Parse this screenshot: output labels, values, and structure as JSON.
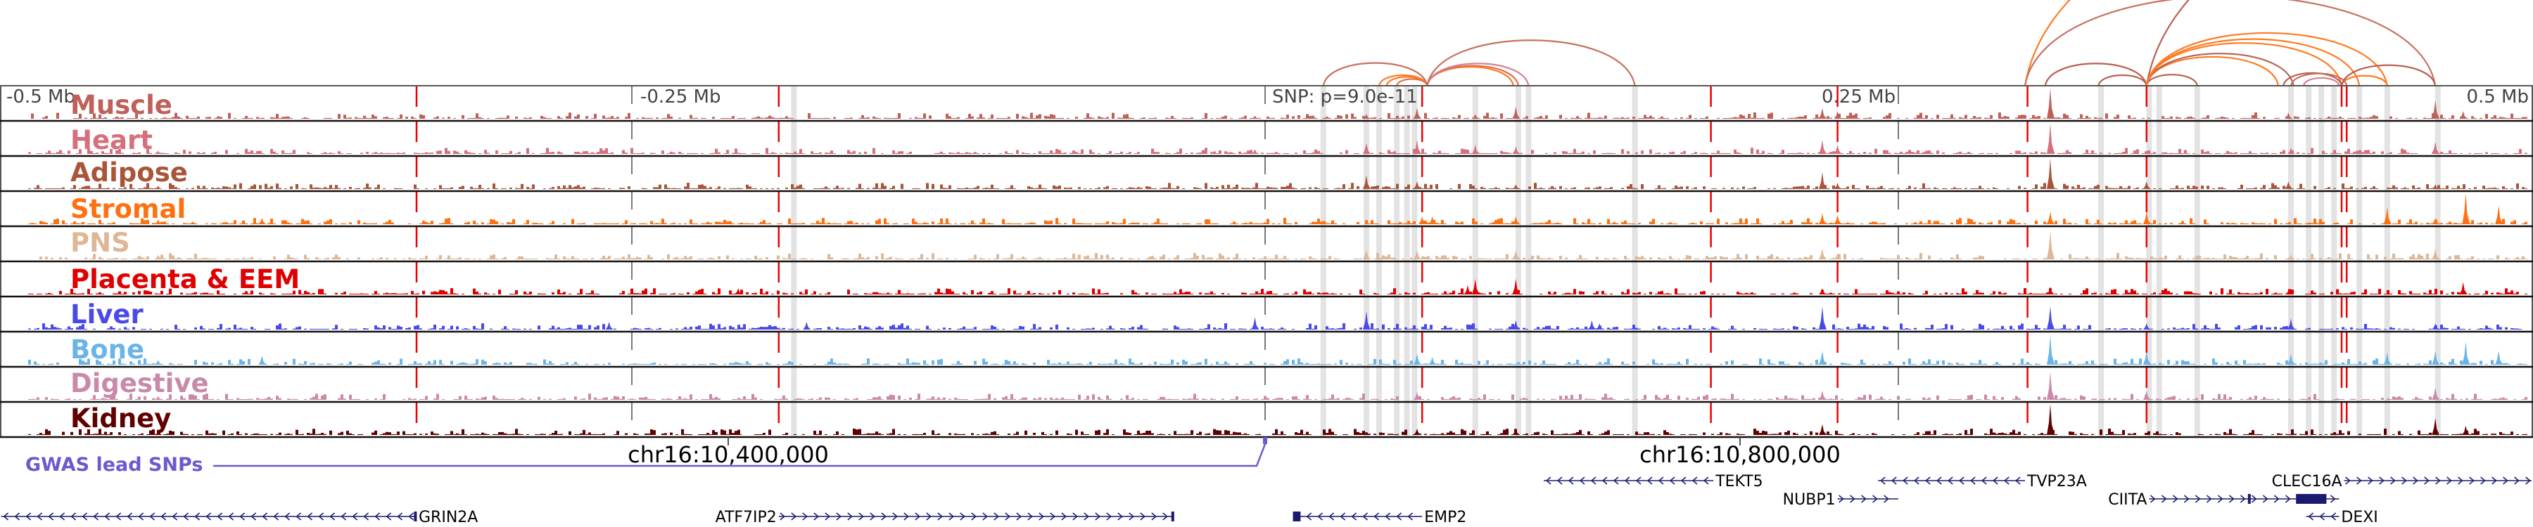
{
  "axis": {
    "left_label": "-0.5 Mb",
    "minus_quarter_label": "-0.25 Mb",
    "snp_label": "SNP: p=9.0e-11",
    "plus_quarter_label": "0.25 Mb",
    "right_label": "0.5 Mb",
    "coord_left": "chr16:10,400,000",
    "coord_right": "chr16:10,800,000"
  },
  "gwas": {
    "label": "GWAS lead SNPs",
    "color": "#6a5acd"
  },
  "tracks": [
    {
      "label": "Muscle",
      "color": "#c0605a",
      "peaks": [
        [
          310,
          1.0
        ],
        [
          220,
          0.35
        ],
        [
          226,
          0.25
        ],
        [
          462,
          0.6
        ],
        [
          60,
          0.35
        ],
        [
          83,
          0.15
        ],
        [
          99,
          0.4
        ],
        [
          473,
          0.25
        ],
        [
          404,
          0.2
        ],
        [
          -4,
          0.1
        ],
        [
          40,
          0.15
        ]
      ]
    },
    {
      "label": "Heart",
      "color": "#d4707e",
      "peaks": [
        [
          310,
          1.0
        ],
        [
          220,
          0.45
        ],
        [
          226,
          0.3
        ],
        [
          60,
          0.45
        ],
        [
          40,
          0.35
        ],
        [
          83,
          0.3
        ],
        [
          462,
          0.4
        ],
        [
          99,
          0.25
        ],
        [
          405,
          0.2
        ],
        [
          -4,
          0.15
        ],
        [
          -437,
          0.1
        ]
      ]
    },
    {
      "label": "Adipose",
      "color": "#a8553a",
      "peaks": [
        [
          310,
          1.0
        ],
        [
          220,
          0.55
        ],
        [
          226,
          0.2
        ],
        [
          40,
          0.45
        ],
        [
          60,
          0.25
        ],
        [
          462,
          0.15
        ],
        [
          348,
          0.25
        ],
        [
          404,
          0.25
        ],
        [
          99,
          0.15
        ],
        [
          -437,
          0.1
        ]
      ]
    },
    {
      "label": "Stromal",
      "color": "#ff7010",
      "peaks": [
        [
          474,
          1.0
        ],
        [
          443,
          0.55
        ],
        [
          487,
          0.6
        ],
        [
          348,
          0.4
        ],
        [
          310,
          0.4
        ],
        [
          220,
          0.35
        ],
        [
          226,
          0.3
        ],
        [
          62,
          0.25
        ],
        [
          66,
          0.25
        ],
        [
          99,
          0.25
        ],
        [
          -396,
          0.2
        ],
        [
          -437,
          0.15
        ],
        [
          462,
          0.2
        ]
      ]
    },
    {
      "label": "PNS",
      "color": "#deb896",
      "peaks": [
        [
          310,
          0.95
        ],
        [
          220,
          0.35
        ],
        [
          226,
          0.2
        ],
        [
          462,
          0.35
        ],
        [
          60,
          0.3
        ],
        [
          40,
          0.3
        ],
        [
          99,
          0.3
        ],
        [
          405,
          0.15
        ],
        [
          -437,
          0.15
        ]
      ]
    },
    {
      "label": "Placenta & EEM",
      "color": "#e00000",
      "peaks": [
        [
          83,
          0.5
        ],
        [
          80,
          0.3
        ],
        [
          99,
          0.5
        ],
        [
          473,
          0.4
        ],
        [
          220,
          0.2
        ],
        [
          310,
          0.25
        ],
        [
          -208,
          0.2
        ],
        [
          404,
          0.12
        ]
      ]
    },
    {
      "label": "Liver",
      "color": "#4a4ae6",
      "peaks": [
        [
          220,
          0.75
        ],
        [
          310,
          0.75
        ],
        [
          40,
          0.6
        ],
        [
          -4,
          0.4
        ],
        [
          129,
          0.3
        ],
        [
          132,
          0.2
        ],
        [
          405,
          0.35
        ],
        [
          99,
          0.3
        ],
        [
          -259,
          0.25
        ],
        [
          -181,
          0.25
        ],
        [
          462,
          0.2
        ],
        [
          348,
          0.2
        ]
      ]
    },
    {
      "label": "Bone",
      "color": "#6ab4e8",
      "peaks": [
        [
          310,
          0.95
        ],
        [
          220,
          0.45
        ],
        [
          348,
          0.45
        ],
        [
          462,
          0.45
        ],
        [
          474,
          0.75
        ],
        [
          443,
          0.4
        ],
        [
          405,
          0.35
        ],
        [
          60,
          0.35
        ],
        [
          66,
          0.25
        ],
        [
          487,
          0.45
        ],
        [
          -396,
          0.3
        ],
        [
          -437,
          0.15
        ]
      ]
    },
    {
      "label": "Digestive",
      "color": "#c88aa8",
      "peaks": [
        [
          310,
          0.9
        ],
        [
          220,
          0.3
        ],
        [
          462,
          0.4
        ],
        [
          348,
          0.3
        ],
        [
          60,
          0.25
        ],
        [
          -437,
          0.12
        ]
      ]
    },
    {
      "label": "Kidney",
      "color": "#600000",
      "peaks": [
        [
          310,
          1.0
        ],
        [
          462,
          0.55
        ],
        [
          220,
          0.35
        ],
        [
          474,
          0.3
        ],
        [
          99,
          0.2
        ],
        [
          60,
          0.2
        ],
        [
          -437,
          0.12
        ],
        [
          -208,
          0.1
        ]
      ]
    }
  ],
  "red_lines_kb": [
    -335,
    -192,
    62,
    176,
    226,
    301,
    348,
    425,
    427
  ],
  "highlight_bands_kb": [
    -186,
    23,
    40,
    45,
    52,
    56,
    59,
    83,
    100,
    104,
    146,
    330,
    349,
    353,
    368,
    405,
    412,
    417,
    422,
    432,
    443,
    463
  ],
  "arcs": [
    {
      "from": 23,
      "to": 64,
      "color": "#c87060"
    },
    {
      "from": 45,
      "to": 64,
      "color": "#ff7a20"
    },
    {
      "from": 48,
      "to": 64,
      "color": "#ff7a20"
    },
    {
      "from": 52,
      "to": 64,
      "color": "#e07050"
    },
    {
      "from": 64,
      "to": 98,
      "color": "#ff7a20"
    },
    {
      "from": 64,
      "to": 100,
      "color": "#e07050"
    },
    {
      "from": 64,
      "to": 104,
      "color": "#d88090"
    },
    {
      "from": 64,
      "to": 146,
      "color": "#c87060"
    },
    {
      "from": 300,
      "to": 700,
      "color": "#ff7a20"
    },
    {
      "from": 300,
      "to": 462,
      "color": "#c87060"
    },
    {
      "from": 348,
      "to": 780,
      "color": "#b86050"
    },
    {
      "from": 308,
      "to": 348,
      "color": "#b86050"
    },
    {
      "from": 329,
      "to": 348,
      "color": "#b86050"
    },
    {
      "from": 348,
      "to": 368,
      "color": "#b86050"
    },
    {
      "from": 348,
      "to": 400,
      "color": "#ff7a20"
    },
    {
      "from": 348,
      "to": 406,
      "color": "#b86050"
    },
    {
      "from": 348,
      "to": 425,
      "color": "#ff7a20"
    },
    {
      "from": 348,
      "to": 432,
      "color": "#ff7a20"
    },
    {
      "from": 348,
      "to": 443,
      "color": "#ff7a20"
    },
    {
      "from": 402,
      "to": 425,
      "color": "#b86050"
    },
    {
      "from": 405,
      "to": 427,
      "color": "#c87060"
    },
    {
      "from": 410,
      "to": 424,
      "color": "#d88090"
    },
    {
      "from": 425,
      "to": 443,
      "color": "#ff7a20"
    },
    {
      "from": 425,
      "to": 462,
      "color": "#b86050"
    }
  ],
  "genes": [
    {
      "name": "GRIN2A",
      "start": -499,
      "end": -335,
      "strand": "-",
      "row": 3,
      "exons": [
        [
          -336,
          -335
        ]
      ]
    },
    {
      "name": "ATF7IP2",
      "start": -192,
      "end": -36,
      "strand": "+",
      "row": 3,
      "exons": [
        [
          -37,
          -36
        ]
      ]
    },
    {
      "name": "EMP2",
      "start": 11,
      "end": 62,
      "strand": "-",
      "row": 3,
      "exons": [
        [
          11,
          14
        ]
      ]
    },
    {
      "name": "TEKT5",
      "start": 110,
      "end": 177,
      "strand": "-",
      "row": 1,
      "exons": []
    },
    {
      "name": "NUBP1",
      "start": 226,
      "end": 250,
      "strand": "+",
      "row": 2,
      "exons": []
    },
    {
      "name": "TVP23A",
      "start": 242,
      "end": 300,
      "strand": "-",
      "row": 1,
      "exons": []
    },
    {
      "name": "CIITA",
      "start": 349,
      "end": 424,
      "strand": "+",
      "row": 2,
      "exons": [
        [
          388,
          389
        ],
        [
          407,
          419
        ]
      ]
    },
    {
      "name": "CLEC16A",
      "start": 426,
      "end": 500,
      "strand": "+",
      "row": 1,
      "exons": []
    },
    {
      "name": "DEXI",
      "start": 411,
      "end": 424,
      "strand": "-",
      "row": 3,
      "exons": []
    }
  ]
}
